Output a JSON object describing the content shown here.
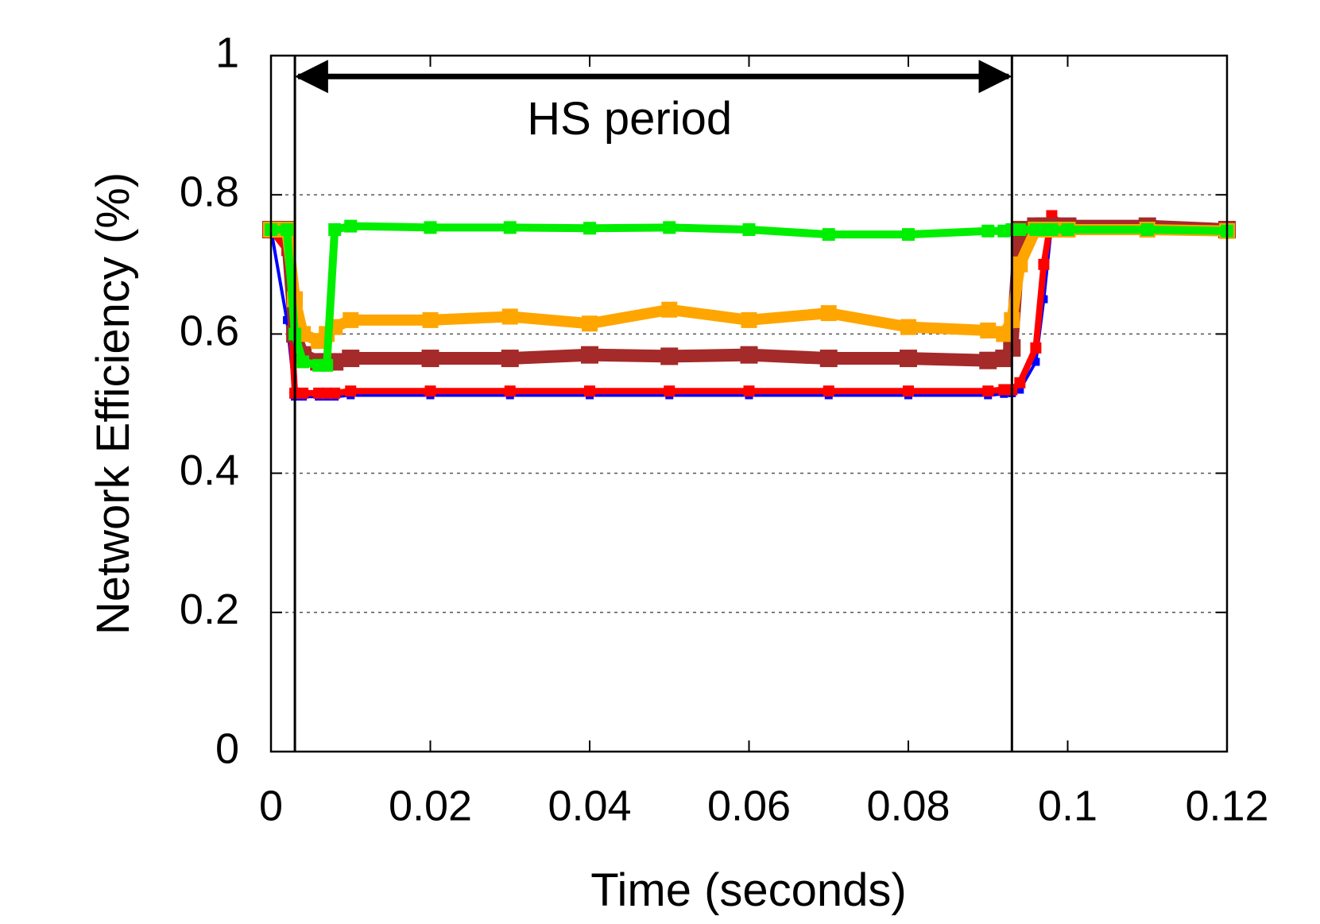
{
  "chart_data": {
    "type": "line",
    "xlabel": "Time (seconds)",
    "ylabel": "Network Efficiency (%)",
    "xlim": [
      0,
      0.12
    ],
    "xticks": [
      0,
      0.02,
      0.04,
      0.06,
      0.08,
      0.1,
      0.12
    ],
    "ylim": [
      0,
      1
    ],
    "yticks": [
      0,
      0.2,
      0.4,
      0.6,
      0.8,
      1
    ],
    "grid": true,
    "annotation": {
      "text": "HS period",
      "start": 0.003,
      "end": 0.093,
      "y": 0.97,
      "text_y": 0.91
    },
    "x": [
      0,
      0.002,
      0.003,
      0.004,
      0.006,
      0.007,
      0.008,
      0.01,
      0.02,
      0.03,
      0.04,
      0.05,
      0.06,
      0.07,
      0.08,
      0.09,
      0.092,
      0.093,
      0.094,
      0.096,
      0.097,
      0.098,
      0.1,
      0.11,
      0.12
    ],
    "series": [
      {
        "color": "#0000ff",
        "values": [
          0.75,
          0.62,
          0.51,
          0.51,
          0.51,
          0.51,
          0.51,
          0.512,
          0.512,
          0.512,
          0.512,
          0.512,
          0.512,
          0.512,
          0.512,
          0.512,
          0.514,
          0.515,
          0.52,
          0.56,
          0.65,
          0.76,
          0.75,
          0.75,
          0.75
        ]
      },
      {
        "color": "#ff0000",
        "values": [
          0.75,
          0.72,
          0.515,
          0.515,
          0.515,
          0.515,
          0.515,
          0.518,
          0.518,
          0.518,
          0.518,
          0.518,
          0.518,
          0.518,
          0.518,
          0.518,
          0.52,
          0.52,
          0.53,
          0.58,
          0.7,
          0.77,
          0.75,
          0.75,
          0.75
        ]
      },
      {
        "color": "#a52a2a",
        "values": [
          0.75,
          0.75,
          0.6,
          0.57,
          0.56,
          0.56,
          0.56,
          0.565,
          0.565,
          0.565,
          0.57,
          0.568,
          0.57,
          0.565,
          0.565,
          0.562,
          0.565,
          0.58,
          0.75,
          0.755,
          0.755,
          0.755,
          0.755,
          0.755,
          0.75
        ]
      },
      {
        "color": "#ffa500",
        "values": [
          0.75,
          0.75,
          0.65,
          0.6,
          0.59,
          0.6,
          0.61,
          0.62,
          0.62,
          0.625,
          0.615,
          0.635,
          0.62,
          0.63,
          0.61,
          0.605,
          0.6,
          0.62,
          0.7,
          0.75,
          0.75,
          0.75,
          0.75,
          0.75,
          0.748
        ]
      },
      {
        "color": "#00ee00",
        "values": [
          0.75,
          0.75,
          0.6,
          0.56,
          0.555,
          0.555,
          0.75,
          0.755,
          0.753,
          0.753,
          0.752,
          0.753,
          0.75,
          0.743,
          0.743,
          0.748,
          0.748,
          0.75,
          0.75,
          0.75,
          0.75,
          0.75,
          0.75,
          0.75,
          0.748
        ]
      }
    ]
  }
}
